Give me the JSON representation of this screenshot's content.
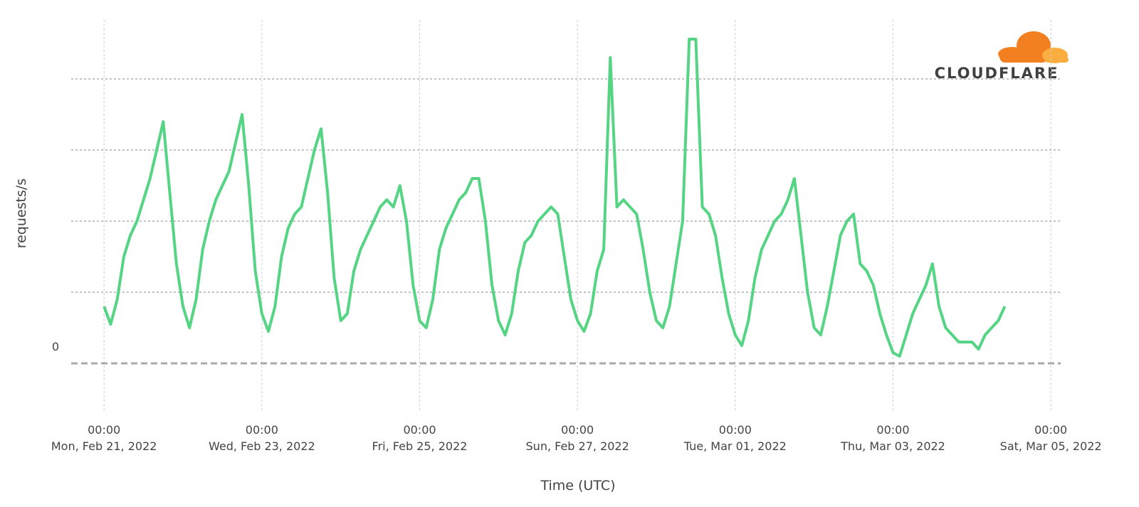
{
  "chart_data": {
    "type": "line",
    "y_label": "requests/s",
    "x_label": "Time (UTC)",
    "logo_text": "CLOUDFLARE",
    "xlim": [
      "2022-02-20 14:00",
      "2022-03-05 03:00"
    ],
    "ylim": [
      -0.6,
      4.6
    ],
    "yticks": [
      0,
      {
        "value": 1,
        "label": null
      },
      {
        "value": 2,
        "label": null
      },
      {
        "value": 3,
        "label": null
      },
      {
        "value": 4,
        "label": null
      }
    ],
    "xticks": [
      {
        "value": "2022-02-21 00:00",
        "label": "00:00\nMon, Feb 21, 2022"
      },
      {
        "value": "2022-02-23 00:00",
        "label": "00:00\nWed, Feb 23, 2022"
      },
      {
        "value": "2022-02-25 00:00",
        "label": "00:00\nFri, Feb 25, 2022"
      },
      {
        "value": "2022-02-27 00:00",
        "label": "00:00\nSun, Feb 27, 2022"
      },
      {
        "value": "2022-03-01 00:00",
        "label": "00:00\nTue, Mar 01, 2022"
      },
      {
        "value": "2022-03-03 00:00",
        "label": "00:00\nThu, Mar 03, 2022"
      },
      {
        "value": "2022-03-05 00:00",
        "label": "00:00\nSat, Mar 05, 2022"
      }
    ],
    "grid": true,
    "x": [
      "2022-02-21 00:00",
      "2022-02-21 02:00",
      "2022-02-21 04:00",
      "2022-02-21 06:00",
      "2022-02-21 08:00",
      "2022-02-21 10:00",
      "2022-02-21 12:00",
      "2022-02-21 14:00",
      "2022-02-21 16:00",
      "2022-02-21 18:00",
      "2022-02-21 20:00",
      "2022-02-21 22:00",
      "2022-02-22 00:00",
      "2022-02-22 02:00",
      "2022-02-22 04:00",
      "2022-02-22 06:00",
      "2022-02-22 08:00",
      "2022-02-22 10:00",
      "2022-02-22 12:00",
      "2022-02-22 14:00",
      "2022-02-22 16:00",
      "2022-02-22 18:00",
      "2022-02-22 20:00",
      "2022-02-22 22:00",
      "2022-02-23 00:00",
      "2022-02-23 02:00",
      "2022-02-23 04:00",
      "2022-02-23 06:00",
      "2022-02-23 08:00",
      "2022-02-23 10:00",
      "2022-02-23 12:00",
      "2022-02-23 14:00",
      "2022-02-23 16:00",
      "2022-02-23 18:00",
      "2022-02-23 20:00",
      "2022-02-23 22:00",
      "2022-02-24 00:00",
      "2022-02-24 02:00",
      "2022-02-24 04:00",
      "2022-02-24 06:00",
      "2022-02-24 08:00",
      "2022-02-24 10:00",
      "2022-02-24 12:00",
      "2022-02-24 14:00",
      "2022-02-24 16:00",
      "2022-02-24 18:00",
      "2022-02-24 20:00",
      "2022-02-24 22:00",
      "2022-02-25 00:00",
      "2022-02-25 02:00",
      "2022-02-25 04:00",
      "2022-02-25 06:00",
      "2022-02-25 08:00",
      "2022-02-25 10:00",
      "2022-02-25 12:00",
      "2022-02-25 14:00",
      "2022-02-25 16:00",
      "2022-02-25 18:00",
      "2022-02-25 20:00",
      "2022-02-25 22:00",
      "2022-02-26 00:00",
      "2022-02-26 02:00",
      "2022-02-26 04:00",
      "2022-02-26 06:00",
      "2022-02-26 08:00",
      "2022-02-26 10:00",
      "2022-02-26 12:00",
      "2022-02-26 14:00",
      "2022-02-26 16:00",
      "2022-02-26 18:00",
      "2022-02-26 20:00",
      "2022-02-26 22:00",
      "2022-02-27 00:00",
      "2022-02-27 02:00",
      "2022-02-27 04:00",
      "2022-02-27 06:00",
      "2022-02-27 08:00",
      "2022-02-27 10:00",
      "2022-02-27 12:00",
      "2022-02-27 14:00",
      "2022-02-27 16:00",
      "2022-02-27 18:00",
      "2022-02-27 20:00",
      "2022-02-27 22:00",
      "2022-02-28 00:00",
      "2022-02-28 02:00",
      "2022-02-28 04:00",
      "2022-02-28 06:00",
      "2022-02-28 08:00",
      "2022-02-28 10:00",
      "2022-02-28 12:00",
      "2022-02-28 14:00",
      "2022-02-28 16:00",
      "2022-02-28 18:00",
      "2022-02-28 20:00",
      "2022-02-28 22:00",
      "2022-03-01 00:00",
      "2022-03-01 02:00",
      "2022-03-01 04:00",
      "2022-03-01 06:00",
      "2022-03-01 08:00",
      "2022-03-01 10:00",
      "2022-03-01 12:00",
      "2022-03-01 14:00",
      "2022-03-01 16:00",
      "2022-03-01 18:00",
      "2022-03-01 20:00",
      "2022-03-01 22:00",
      "2022-03-02 00:00",
      "2022-03-02 02:00",
      "2022-03-02 04:00",
      "2022-03-02 06:00",
      "2022-03-02 08:00",
      "2022-03-02 10:00",
      "2022-03-02 12:00",
      "2022-03-02 14:00",
      "2022-03-02 16:00",
      "2022-03-02 18:00",
      "2022-03-02 20:00",
      "2022-03-02 22:00",
      "2022-03-03 00:00",
      "2022-03-03 02:00",
      "2022-03-03 04:00",
      "2022-03-03 06:00",
      "2022-03-03 08:00",
      "2022-03-03 10:00",
      "2022-03-03 12:00",
      "2022-03-03 14:00",
      "2022-03-03 16:00",
      "2022-03-03 18:00",
      "2022-03-03 20:00",
      "2022-03-03 22:00",
      "2022-03-04 00:00",
      "2022-03-04 02:00",
      "2022-03-04 04:00",
      "2022-03-04 06:00",
      "2022-03-04 08:00",
      "2022-03-04 10:00"
    ],
    "series": [
      {
        "name": "requests/s",
        "color": "#55d484",
        "values": [
          0.8,
          0.55,
          0.9,
          1.5,
          1.8,
          2.0,
          2.3,
          2.6,
          3.0,
          3.4,
          2.4,
          1.4,
          0.8,
          0.5,
          0.9,
          1.6,
          2.0,
          2.3,
          2.5,
          2.7,
          3.1,
          3.5,
          2.5,
          1.3,
          0.7,
          0.45,
          0.8,
          1.5,
          1.9,
          2.1,
          2.2,
          2.6,
          3.0,
          3.3,
          2.4,
          1.2,
          0.6,
          0.7,
          1.3,
          1.6,
          1.8,
          2.0,
          2.2,
          2.3,
          2.2,
          2.5,
          2.0,
          1.1,
          0.6,
          0.5,
          0.9,
          1.6,
          1.9,
          2.1,
          2.3,
          2.4,
          2.6,
          2.6,
          2.0,
          1.1,
          0.6,
          0.4,
          0.7,
          1.3,
          1.7,
          1.8,
          2.0,
          2.1,
          2.2,
          2.1,
          1.5,
          0.9,
          0.6,
          0.45,
          0.7,
          1.3,
          1.6,
          4.3,
          2.2,
          2.3,
          2.2,
          2.1,
          1.6,
          1.0,
          0.6,
          0.5,
          0.8,
          1.4,
          2.0,
          4.56,
          4.56,
          2.2,
          2.1,
          1.8,
          1.2,
          0.7,
          0.4,
          0.25,
          0.6,
          1.2,
          1.6,
          1.8,
          2.0,
          2.1,
          2.3,
          2.6,
          1.8,
          1.0,
          0.5,
          0.4,
          0.8,
          1.3,
          1.8,
          2.0,
          2.1,
          1.4,
          1.3,
          1.1,
          0.7,
          0.4,
          0.15,
          0.1,
          0.4,
          0.7,
          0.9,
          1.1,
          1.4,
          0.8,
          0.5,
          0.4,
          0.3,
          0.3,
          0.3,
          0.2,
          0.4,
          0.5,
          0.6,
          0.8
        ]
      }
    ]
  }
}
